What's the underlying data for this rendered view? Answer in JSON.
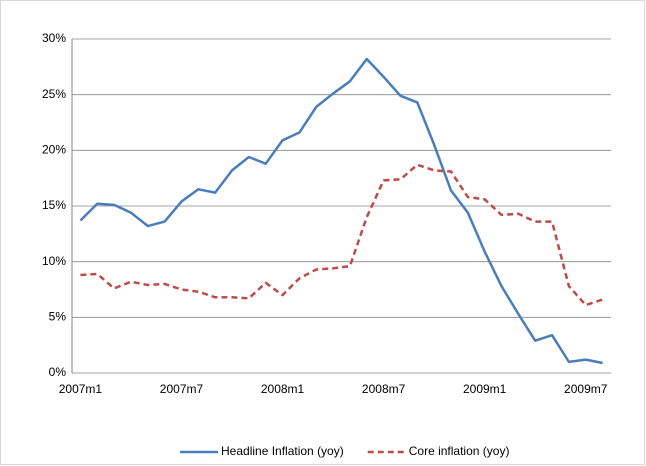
{
  "chart_data": {
    "type": "line",
    "categories": [
      "2007m1",
      null,
      null,
      null,
      null,
      null,
      "2007m7",
      null,
      null,
      null,
      null,
      null,
      "2008m1",
      null,
      null,
      null,
      null,
      null,
      "2008m7",
      null,
      null,
      null,
      null,
      null,
      "2009m1",
      null,
      null,
      null,
      null,
      null,
      "2009m7",
      null
    ],
    "series": [
      {
        "name": "Headline Inflation (yoy)",
        "color": "#4a7ebb",
        "dash": "solid",
        "values": [
          13.7,
          15.2,
          15.1,
          14.4,
          13.2,
          13.6,
          15.4,
          16.5,
          16.2,
          18.2,
          19.4,
          18.8,
          20.9,
          21.6,
          23.9,
          25.1,
          26.2,
          28.2,
          26.6,
          24.9,
          24.3,
          20.5,
          16.4,
          14.4,
          10.9,
          7.8,
          5.3,
          2.9,
          3.4,
          1.0,
          1.2,
          0.9
        ]
      },
      {
        "name": "Core inflation (yoy)",
        "color": "#be4b48",
        "dash": "dashed",
        "values": [
          8.8,
          8.9,
          7.6,
          8.2,
          7.9,
          8.0,
          7.5,
          7.3,
          6.8,
          6.8,
          6.7,
          8.1,
          7.0,
          8.5,
          9.3,
          9.4,
          9.6,
          14.0,
          17.3,
          17.4,
          18.7,
          18.2,
          18.1,
          15.8,
          15.6,
          14.2,
          14.3,
          13.6,
          13.6,
          7.8,
          6.1,
          6.6
        ]
      }
    ],
    "ylim": [
      0,
      30
    ],
    "yticks": [
      {
        "value": 0,
        "label": "0%"
      },
      {
        "value": 5,
        "label": "5%"
      },
      {
        "value": 10,
        "label": "10%"
      },
      {
        "value": 15,
        "label": "15%"
      },
      {
        "value": 20,
        "label": "20%"
      },
      {
        "value": 25,
        "label": "25%"
      },
      {
        "value": 30,
        "label": "30%"
      }
    ],
    "grid": true,
    "legend": "bottom"
  }
}
